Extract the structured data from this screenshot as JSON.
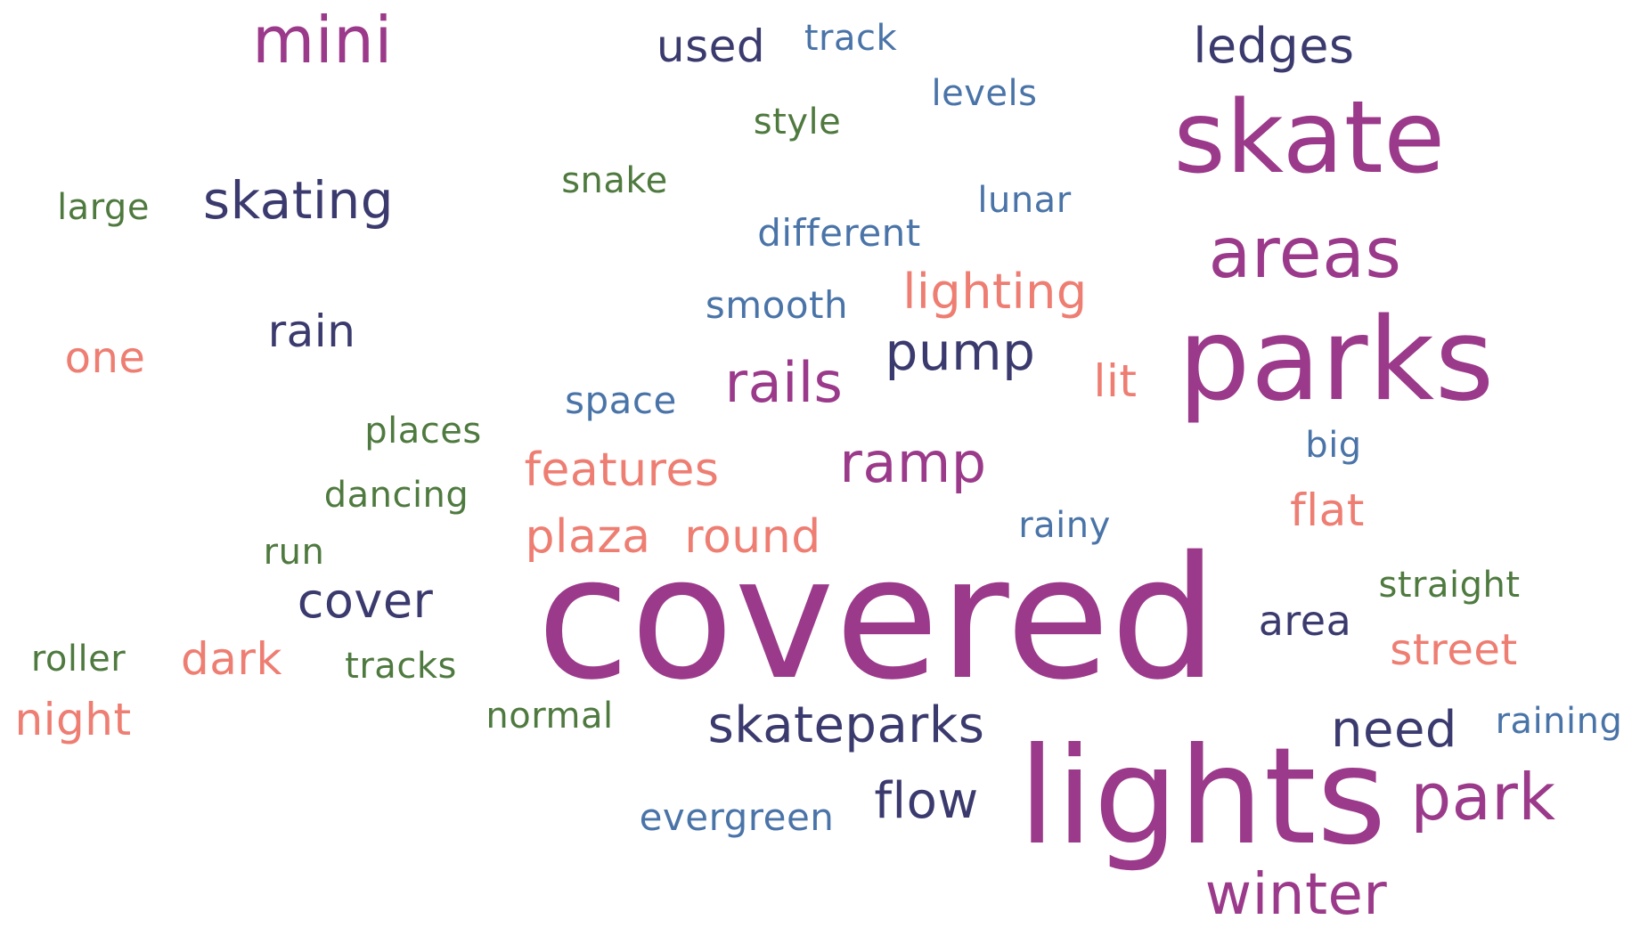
{
  "palette": {
    "magenta": "#9b3a8a",
    "navy": "#3b3a6e",
    "salmon": "#ee7d72",
    "green": "#4f7a3f",
    "steel": "#4a74a8"
  },
  "words": [
    {
      "text": "covered",
      "color": "magenta"
    },
    {
      "text": "lights",
      "color": "magenta"
    },
    {
      "text": "parks",
      "color": "magenta"
    },
    {
      "text": "skate",
      "color": "magenta"
    },
    {
      "text": "areas",
      "color": "magenta"
    },
    {
      "text": "mini",
      "color": "magenta"
    },
    {
      "text": "park",
      "color": "magenta"
    },
    {
      "text": "winter",
      "color": "magenta"
    },
    {
      "text": "rails",
      "color": "magenta"
    },
    {
      "text": "ramp",
      "color": "magenta"
    },
    {
      "text": "skating",
      "color": "navy"
    },
    {
      "text": "ledges",
      "color": "navy"
    },
    {
      "text": "used",
      "color": "navy"
    },
    {
      "text": "pump",
      "color": "navy"
    },
    {
      "text": "skateparks",
      "color": "navy"
    },
    {
      "text": "cover",
      "color": "navy"
    },
    {
      "text": "flow",
      "color": "navy"
    },
    {
      "text": "need",
      "color": "navy"
    },
    {
      "text": "rain",
      "color": "navy"
    },
    {
      "text": "area",
      "color": "navy"
    },
    {
      "text": "lighting",
      "color": "salmon"
    },
    {
      "text": "features",
      "color": "salmon"
    },
    {
      "text": "plaza",
      "color": "salmon"
    },
    {
      "text": "round",
      "color": "salmon"
    },
    {
      "text": "dark",
      "color": "salmon"
    },
    {
      "text": "night",
      "color": "salmon"
    },
    {
      "text": "one",
      "color": "salmon"
    },
    {
      "text": "lit",
      "color": "salmon"
    },
    {
      "text": "flat",
      "color": "salmon"
    },
    {
      "text": "street",
      "color": "salmon"
    },
    {
      "text": "track",
      "color": "steel"
    },
    {
      "text": "levels",
      "color": "steel"
    },
    {
      "text": "lunar",
      "color": "steel"
    },
    {
      "text": "different",
      "color": "steel"
    },
    {
      "text": "smooth",
      "color": "steel"
    },
    {
      "text": "space",
      "color": "steel"
    },
    {
      "text": "big",
      "color": "steel"
    },
    {
      "text": "rainy",
      "color": "steel"
    },
    {
      "text": "raining",
      "color": "steel"
    },
    {
      "text": "evergreen",
      "color": "steel"
    },
    {
      "text": "style",
      "color": "green"
    },
    {
      "text": "snake",
      "color": "green"
    },
    {
      "text": "large",
      "color": "green"
    },
    {
      "text": "places",
      "color": "green"
    },
    {
      "text": "dancing",
      "color": "green"
    },
    {
      "text": "run",
      "color": "green"
    },
    {
      "text": "roller",
      "color": "green"
    },
    {
      "text": "tracks",
      "color": "green"
    },
    {
      "text": "normal",
      "color": "green"
    },
    {
      "text": "straight",
      "color": "green"
    }
  ]
}
